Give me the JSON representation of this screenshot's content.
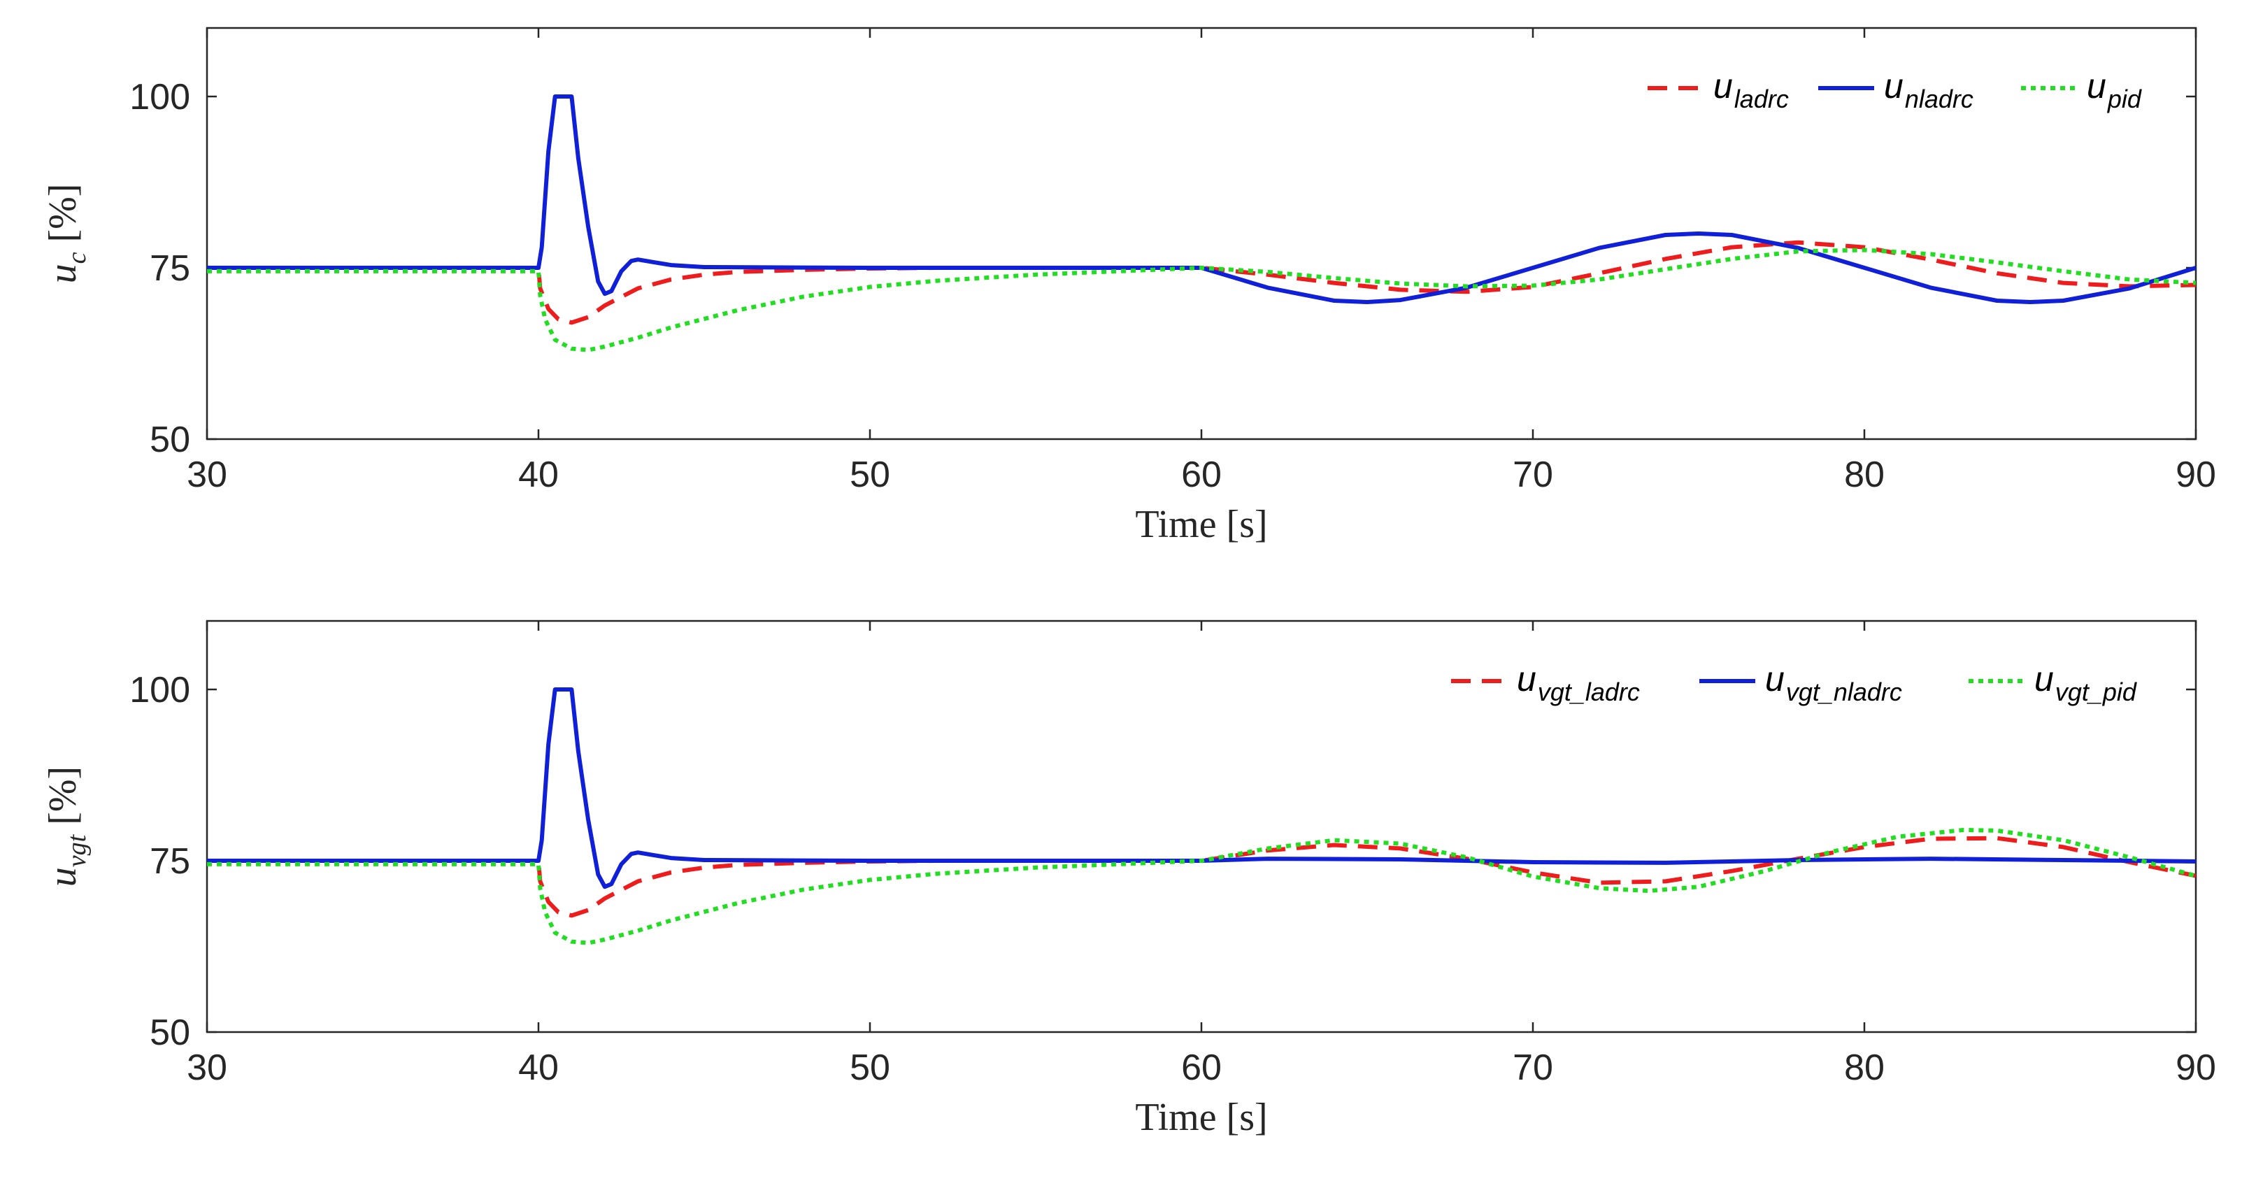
{
  "chart_data": [
    {
      "type": "line",
      "title": "",
      "xlabel": "Time [s]",
      "ylabel": {
        "symbol": "u",
        "subscript": "c",
        "unit": "[%]"
      },
      "xlim": [
        30,
        90
      ],
      "ylim": [
        50,
        110
      ],
      "xticks": [
        30,
        40,
        50,
        60,
        70,
        80,
        90
      ],
      "yticks": [
        50,
        75,
        100
      ],
      "legend_position": "top-right",
      "series": [
        {
          "name": "u_ladrc",
          "label_main": "u",
          "label_sub": "ladrc",
          "color": "#ee1c1c",
          "style": "dashed",
          "x": [
            30,
            40,
            40.05,
            40.3,
            40.6,
            41,
            41.5,
            42,
            43,
            44,
            45,
            46,
            48,
            50,
            52,
            55,
            58,
            60,
            62,
            64,
            66,
            68,
            70,
            72,
            74,
            76,
            78,
            80,
            82,
            84,
            86,
            88,
            90
          ],
          "y": [
            75,
            75,
            72,
            69,
            67.5,
            67,
            67.8,
            69.5,
            72,
            73.3,
            74,
            74.4,
            74.7,
            74.9,
            75,
            75,
            75,
            75,
            74,
            72.8,
            71.8,
            71.5,
            72.2,
            74.2,
            76.3,
            78,
            78.7,
            78,
            76.2,
            74.2,
            72.8,
            72.3,
            72.5
          ]
        },
        {
          "name": "u_nladrc",
          "label_main": "u",
          "label_sub": "nladrc",
          "color": "#1020d8",
          "style": "solid",
          "x": [
            30,
            40,
            40.1,
            40.3,
            40.5,
            41,
            41.2,
            41.5,
            41.8,
            42,
            42.2,
            42.5,
            42.8,
            43,
            43.5,
            44,
            45,
            50,
            55,
            60,
            62,
            64,
            65,
            66,
            68,
            70,
            72,
            74,
            75,
            76,
            78,
            80,
            82,
            84,
            85,
            86,
            88,
            90
          ],
          "y": [
            75,
            75,
            78,
            92,
            100,
            100,
            91,
            81,
            73,
            71.2,
            71.6,
            74.5,
            76,
            76.2,
            75.8,
            75.4,
            75.1,
            75,
            75,
            75,
            72.1,
            70.2,
            70,
            70.3,
            72.1,
            75,
            77.9,
            79.8,
            80,
            79.8,
            77.9,
            75,
            72.1,
            70.2,
            70,
            70.2,
            72,
            75
          ]
        },
        {
          "name": "u_pid",
          "label_main": "u",
          "label_sub": "pid",
          "color": "#22dd22",
          "style": "dotted",
          "x": [
            30,
            40,
            40.05,
            40.2,
            40.5,
            41,
            41.5,
            42,
            43,
            44,
            46,
            48,
            50,
            52,
            55,
            58,
            60,
            62,
            64,
            66,
            68,
            70,
            72,
            74,
            76,
            78,
            80,
            82,
            84,
            86,
            88,
            90
          ],
          "y": [
            74.5,
            74.5,
            71,
            67.5,
            64.5,
            63.2,
            63,
            63.5,
            64.8,
            66.3,
            68.8,
            70.8,
            72.2,
            73.1,
            74,
            74.6,
            75,
            74.4,
            73.5,
            72.7,
            72.3,
            72.4,
            73.3,
            74.8,
            76.3,
            77.4,
            77.6,
            77,
            75.8,
            74.5,
            73.3,
            72.8
          ]
        }
      ]
    },
    {
      "type": "line",
      "title": "",
      "xlabel": "Time [s]",
      "ylabel": {
        "symbol": "u",
        "subscript": "vgt",
        "unit": "[%]"
      },
      "xlim": [
        30,
        90
      ],
      "ylim": [
        50,
        110
      ],
      "xticks": [
        30,
        40,
        50,
        60,
        70,
        80,
        90
      ],
      "yticks": [
        50,
        75,
        100
      ],
      "legend_position": "top-right",
      "series": [
        {
          "name": "u_vgt_ladrc",
          "label_main": "u",
          "label_sub": "vgt_ladrc",
          "color": "#ee1c1c",
          "style": "dashed",
          "x": [
            30,
            40,
            40.05,
            40.3,
            40.6,
            41,
            41.5,
            42,
            43,
            44,
            45,
            46,
            48,
            50,
            52,
            55,
            58,
            60,
            62,
            64,
            66,
            68,
            70,
            72,
            74,
            76,
            78,
            80,
            82,
            84,
            86,
            88,
            90
          ],
          "y": [
            75,
            75,
            72,
            69,
            67.5,
            67,
            67.8,
            69.5,
            72,
            73.3,
            74,
            74.4,
            74.7,
            74.9,
            75,
            75,
            75,
            75,
            76.5,
            77.3,
            76.8,
            75.3,
            73.3,
            71.8,
            72,
            73.5,
            75.3,
            77,
            78.2,
            78.3,
            77,
            74.8,
            72.8
          ]
        },
        {
          "name": "u_vgt_nladrc",
          "label_main": "u",
          "label_sub": "vgt_nladrc",
          "color": "#1020d8",
          "style": "solid",
          "x": [
            30,
            40,
            40.1,
            40.3,
            40.5,
            41,
            41.2,
            41.5,
            41.8,
            42,
            42.2,
            42.5,
            42.8,
            43,
            43.5,
            44,
            45,
            50,
            55,
            60,
            62,
            66,
            70,
            74,
            78,
            82,
            86,
            90
          ],
          "y": [
            75,
            75,
            78,
            92,
            100,
            100,
            91,
            81,
            73,
            71.2,
            71.6,
            74.5,
            76,
            76.2,
            75.8,
            75.4,
            75.1,
            75,
            75,
            75,
            75.3,
            75.2,
            74.8,
            74.7,
            75.1,
            75.3,
            75.1,
            74.9
          ]
        },
        {
          "name": "u_vgt_pid",
          "label_main": "u",
          "label_sub": "vgt_pid",
          "color": "#22dd22",
          "style": "dotted",
          "x": [
            30,
            40,
            40.05,
            40.2,
            40.5,
            41,
            41.5,
            42,
            43,
            44,
            46,
            48,
            50,
            52,
            55,
            58,
            60,
            62,
            64,
            66,
            68,
            70,
            72,
            73.5,
            75,
            77,
            79,
            81,
            83,
            84,
            86,
            88,
            90
          ],
          "y": [
            74.5,
            74.5,
            71,
            67.5,
            64.5,
            63.2,
            63,
            63.5,
            64.8,
            66.3,
            68.8,
            70.8,
            72.2,
            73.1,
            74,
            74.6,
            75,
            76.8,
            78,
            77.5,
            75.5,
            72.7,
            71,
            70.6,
            71.2,
            73.5,
            76.3,
            78.5,
            79.5,
            79.4,
            78,
            75.5,
            72.8
          ]
        }
      ]
    }
  ]
}
